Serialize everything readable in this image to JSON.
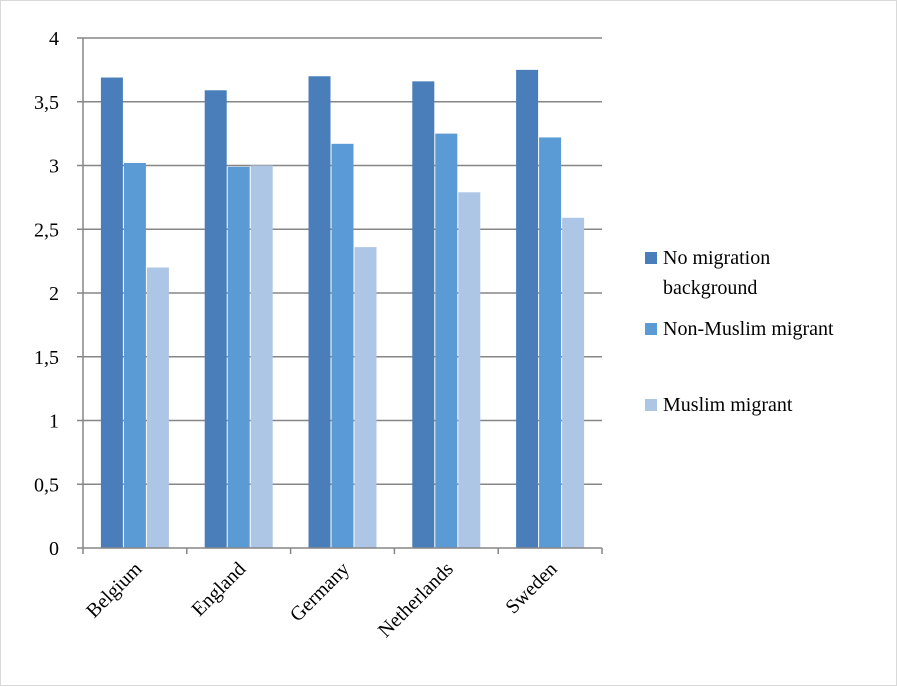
{
  "chart_data": {
    "type": "bar",
    "title": "",
    "xlabel": "",
    "ylabel": "",
    "categories": [
      "Belgium",
      "England",
      "Germany",
      "Netherlands",
      "Sweden"
    ],
    "series": [
      {
        "name": "No migration background",
        "color": "#4a7ebb",
        "values": [
          3.69,
          3.59,
          3.7,
          3.66,
          3.75
        ]
      },
      {
        "name": "Non-Muslim migrant",
        "color": "#5b9bd5",
        "values": [
          3.02,
          2.99,
          3.17,
          3.25,
          3.22
        ]
      },
      {
        "name": "Muslim migrant",
        "color": "#aec6e6",
        "values": [
          2.2,
          3.0,
          2.36,
          2.79,
          2.59
        ]
      }
    ],
    "ylim": [
      0,
      4
    ],
    "yticks": [
      0,
      0.5,
      1,
      1.5,
      2,
      2.5,
      3,
      3.5,
      4
    ],
    "ytick_labels": [
      "0",
      "0,5",
      "1",
      "1,5",
      "2",
      "2,5",
      "3",
      "3,5",
      "4"
    ],
    "grid": true,
    "legend_position": "right",
    "legend": [
      {
        "lines": [
          "No migration",
          "background"
        ]
      },
      {
        "lines": [
          "Non-Muslim migrant"
        ]
      },
      {
        "lines": [
          "Muslim migrant"
        ]
      }
    ]
  }
}
